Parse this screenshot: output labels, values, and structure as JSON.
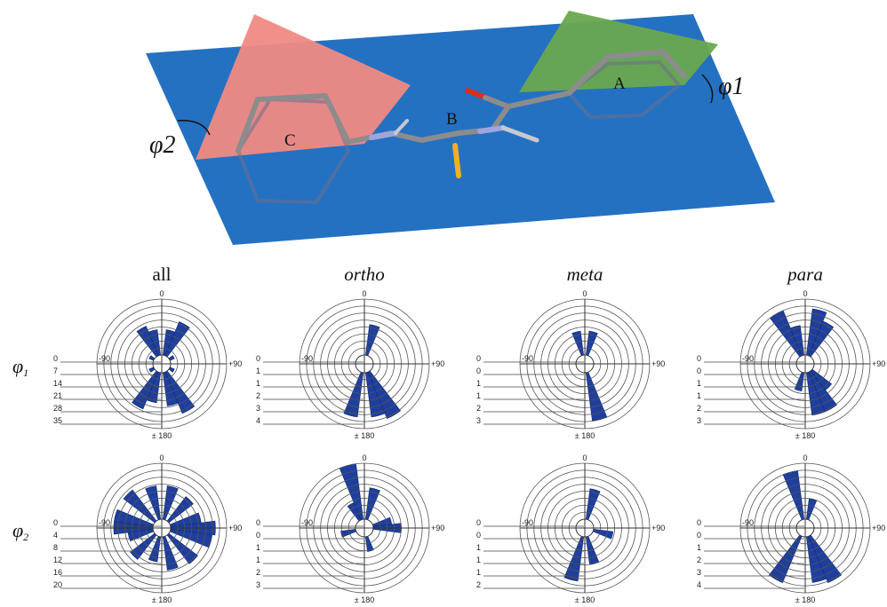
{
  "illustration": {
    "ring_labels": [
      "A",
      "B",
      "C"
    ],
    "angle_labels": [
      "φ1",
      "φ2"
    ],
    "colors": {
      "plane": "#2471c2",
      "plane_a": "#6aa84f",
      "plane_c": "#f08a84",
      "bond": "#8c8c8c",
      "oxygen": "#d9301b",
      "sulfur": "#f2b01e",
      "nitrogen": "#9ea6dd"
    }
  },
  "chart_data": {
    "type": "rose",
    "columns": [
      {
        "title": "all",
        "italic": false
      },
      {
        "title": "ortho",
        "italic": true
      },
      {
        "title": "meta",
        "italic": true
      },
      {
        "title": "para",
        "italic": true
      }
    ],
    "rows": [
      {
        "label": "φ1",
        "sub": "1"
      },
      {
        "label": "φ2",
        "sub": "2"
      }
    ],
    "angle_labels": {
      "top": "0",
      "left": "-90",
      "right": "+90",
      "bottom": "± 180"
    },
    "bin_width_deg": 15,
    "color": "#1f3f9e",
    "panels": [
      {
        "row": 0,
        "col": 0,
        "ticks": [
          "0",
          "7",
          "14",
          "21",
          "28",
          "35"
        ],
        "max": 35,
        "bins": [
          {
            "angle": -30,
            "value": 20
          },
          {
            "angle": -15,
            "value": 16
          },
          {
            "angle": 15,
            "value": 16
          },
          {
            "angle": 30,
            "value": 23
          },
          {
            "angle": -60,
            "value": 3
          },
          {
            "angle": 60,
            "value": 3
          },
          {
            "angle": -120,
            "value": 3
          },
          {
            "angle": 120,
            "value": 3
          },
          {
            "angle": -165,
            "value": 19
          },
          {
            "angle": -150,
            "value": 25
          },
          {
            "angle": 150,
            "value": 28
          },
          {
            "angle": 165,
            "value": 21
          }
        ]
      },
      {
        "row": 0,
        "col": 1,
        "ticks": [
          "0",
          "1",
          "1",
          "2",
          "3",
          "4"
        ],
        "max": 4,
        "bins": [
          {
            "angle": 15,
            "value": 2.2
          },
          {
            "angle": -165,
            "value": 3.2
          },
          {
            "angle": 165,
            "value": 3.2
          },
          {
            "angle": 150,
            "value": 3.6
          }
        ]
      },
      {
        "row": 0,
        "col": 2,
        "ticks": [
          "0",
          "0",
          "1",
          "1",
          "2",
          "3"
        ],
        "max": 3,
        "bins": [
          {
            "angle": -15,
            "value": 1.3
          },
          {
            "angle": 15,
            "value": 1.3
          },
          {
            "angle": 165,
            "value": 2.6
          }
        ]
      },
      {
        "row": 0,
        "col": 3,
        "ticks": [
          "0",
          "0",
          "1",
          "1",
          "2",
          "3"
        ],
        "max": 3,
        "bins": [
          {
            "angle": -30,
            "value": 2.6
          },
          {
            "angle": -15,
            "value": 1.6
          },
          {
            "angle": 15,
            "value": 2.5
          },
          {
            "angle": 30,
            "value": 2.0
          },
          {
            "angle": -165,
            "value": 1.0
          },
          {
            "angle": 165,
            "value": 2.3
          },
          {
            "angle": 150,
            "value": 2.3
          },
          {
            "angle": 135,
            "value": 1.3
          }
        ]
      },
      {
        "row": 1,
        "col": 0,
        "ticks": [
          "0",
          "4",
          "8",
          "12",
          "16",
          "20"
        ],
        "max": 20,
        "bins": [
          {
            "angle": -15,
            "value": 12
          },
          {
            "angle": 15,
            "value": 12
          },
          {
            "angle": -45,
            "value": 14
          },
          {
            "angle": 45,
            "value": 11
          },
          {
            "angle": -75,
            "value": 14
          },
          {
            "angle": 75,
            "value": 11
          },
          {
            "angle": -90,
            "value": 14
          },
          {
            "angle": 90,
            "value": 16
          },
          {
            "angle": -105,
            "value": 9
          },
          {
            "angle": 105,
            "value": 15
          },
          {
            "angle": -135,
            "value": 11
          },
          {
            "angle": 135,
            "value": 13
          },
          {
            "angle": -165,
            "value": 9
          },
          {
            "angle": 165,
            "value": 12
          }
        ]
      },
      {
        "row": 1,
        "col": 1,
        "ticks": [
          "0",
          "0",
          "1",
          "1",
          "2",
          "3"
        ],
        "max": 3,
        "bins": [
          {
            "angle": -15,
            "value": 3.1
          },
          {
            "angle": 15,
            "value": 1.7
          },
          {
            "angle": -30,
            "value": 1.0
          },
          {
            "angle": 75,
            "value": 1.0
          },
          {
            "angle": 90,
            "value": 1.5
          },
          {
            "angle": -105,
            "value": 0.8
          },
          {
            "angle": 165,
            "value": 0.8
          }
        ]
      },
      {
        "row": 1,
        "col": 2,
        "ticks": [
          "0",
          "0",
          "1",
          "1",
          "1",
          "2"
        ],
        "max": 2,
        "bins": [
          {
            "angle": 15,
            "value": 1.1
          },
          {
            "angle": 105,
            "value": 0.7
          },
          {
            "angle": -165,
            "value": 1.6
          },
          {
            "angle": 165,
            "value": 1.0
          }
        ]
      },
      {
        "row": 1,
        "col": 3,
        "ticks": [
          "0",
          "0",
          "1",
          "2",
          "3",
          "4"
        ],
        "max": 4,
        "bins": [
          {
            "angle": -15,
            "value": 3.5
          },
          {
            "angle": 15,
            "value": 1.5
          },
          {
            "angle": -150,
            "value": 3.6
          },
          {
            "angle": 165,
            "value": 3.3
          },
          {
            "angle": 150,
            "value": 3.6
          }
        ]
      }
    ]
  }
}
